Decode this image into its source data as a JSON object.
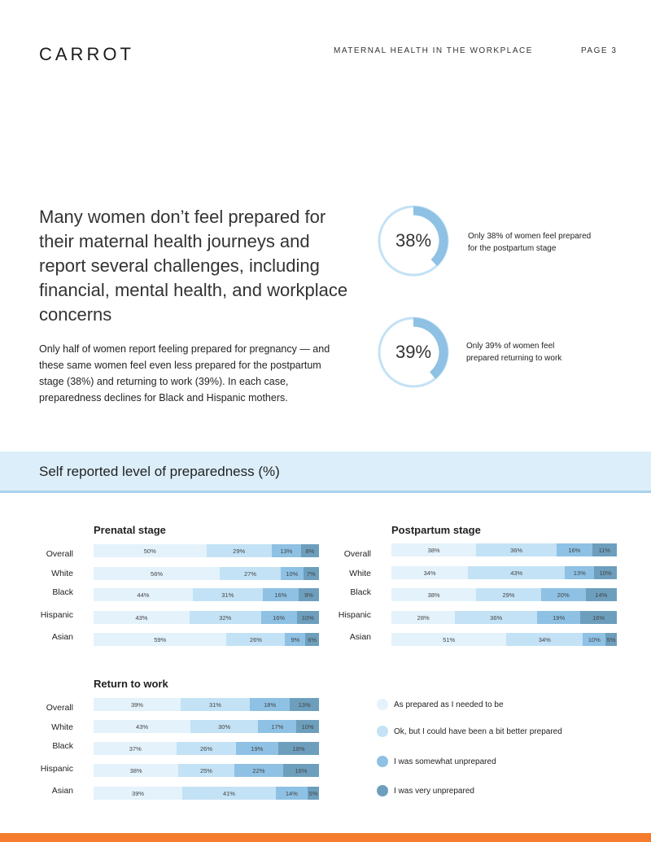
{
  "header": {
    "logo": "CARROT",
    "document_title": "MATERNAL HEALTH IN THE WORKPLACE",
    "page_label": "PAGE 3"
  },
  "headline": "Many women don’t feel prepared for their maternal health journeys and report several challenges, including financial, mental health, and workplace concerns",
  "intro": "Only half of women report feeling prepared for pregnancy — and these same women feel even less prepared for the postpartum stage (38%) and returning to work (39%). In each case, preparedness declines for Black and Hispanic mothers.",
  "stats": [
    {
      "label": "38%",
      "value": 38,
      "caption": "Only 38% of women feel prepared for the postpartum stage"
    },
    {
      "label": "39%",
      "value": 39,
      "caption": "Only 39% of women feel prepared returning to work"
    }
  ],
  "section_title": "Self reported level of preparedness (%)",
  "colors": {
    "accent": "#8ec1e4",
    "donut_track": "#c3e2f5",
    "band": "#dbeef9",
    "footer": "#f47c2c",
    "series": [
      "#e4f2fb",
      "#c3e2f5",
      "#8ec1e4",
      "#6d9fbd"
    ]
  },
  "chart_data": [
    {
      "type": "bar",
      "stacked": true,
      "orientation": "horizontal",
      "title": "Prenatal stage",
      "categories": [
        "Overall",
        "White",
        "Black",
        "Hispanic",
        "Asian"
      ],
      "series": [
        {
          "name": "As prepared as I needed to be",
          "values": [
            50,
            56,
            44,
            43,
            59
          ]
        },
        {
          "name": "Ok, but I could have been a bit better prepared",
          "values": [
            29,
            27,
            31,
            32,
            26
          ]
        },
        {
          "name": "I was somewhat unprepared",
          "values": [
            13,
            10,
            16,
            16,
            9
          ]
        },
        {
          "name": "I was very unprepared",
          "values": [
            8,
            7,
            9,
            10,
            6
          ]
        }
      ]
    },
    {
      "type": "bar",
      "stacked": true,
      "orientation": "horizontal",
      "title": "Postpartum stage",
      "categories": [
        "Overall",
        "White",
        "Black",
        "Hispanic",
        "Asian"
      ],
      "series": [
        {
          "name": "As prepared as I needed to be",
          "values": [
            38,
            34,
            38,
            28,
            51
          ]
        },
        {
          "name": "Ok, but I could have been a bit better prepared",
          "values": [
            36,
            43,
            29,
            36,
            34
          ]
        },
        {
          "name": "I was somewhat unprepared",
          "values": [
            16,
            13,
            20,
            19,
            10
          ]
        },
        {
          "name": "I was very unprepared",
          "values": [
            11,
            10,
            14,
            16,
            5
          ]
        }
      ]
    },
    {
      "type": "bar",
      "stacked": true,
      "orientation": "horizontal",
      "title": "Return to work",
      "categories": [
        "Overall",
        "White",
        "Black",
        "Hispanic",
        "Asian"
      ],
      "series": [
        {
          "name": "As prepared as I needed to be",
          "values": [
            39,
            43,
            37,
            38,
            39
          ]
        },
        {
          "name": "Ok, but I could have been a bit better prepared",
          "values": [
            31,
            30,
            26,
            25,
            41
          ]
        },
        {
          "name": "I was somewhat unprepared",
          "values": [
            18,
            17,
            19,
            22,
            14
          ]
        },
        {
          "name": "I was very unprepared",
          "values": [
            13,
            10,
            18,
            16,
            5
          ]
        }
      ]
    }
  ]
}
